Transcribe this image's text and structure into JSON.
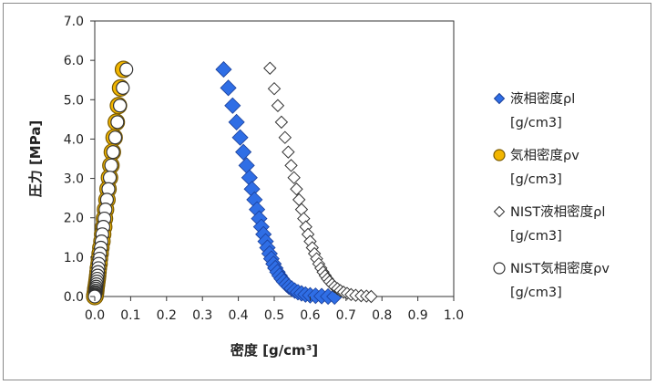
{
  "chart_data": {
    "type": "scatter",
    "xlabel": "密度 [g/cm³]",
    "ylabel": "圧力 [MPa]",
    "xlim": [
      0.0,
      1.0
    ],
    "ylim": [
      0.0,
      7.0
    ],
    "x_ticks": [
      "0.0",
      "0.1",
      "0.2",
      "0.3",
      "0.4",
      "0.5",
      "0.6",
      "0.7",
      "0.8",
      "0.9",
      "1.0"
    ],
    "y_ticks": [
      "0.0",
      "1.0",
      "2.0",
      "3.0",
      "4.0",
      "5.0",
      "6.0",
      "7.0"
    ],
    "grid": false,
    "legend_position": "right",
    "series": [
      {
        "name": "液相密度ρl [g/cm3]",
        "marker": "diamond-filled",
        "color": "#2f6ee5",
        "stroke": "#1a3f99",
        "points": [
          [
            0.359,
            5.77
          ],
          [
            0.372,
            5.3
          ],
          [
            0.384,
            4.85
          ],
          [
            0.395,
            4.43
          ],
          [
            0.405,
            4.04
          ],
          [
            0.414,
            3.67
          ],
          [
            0.423,
            3.33
          ],
          [
            0.431,
            3.02
          ],
          [
            0.438,
            2.73
          ],
          [
            0.445,
            2.46
          ],
          [
            0.452,
            2.21
          ],
          [
            0.458,
            1.98
          ],
          [
            0.464,
            1.77
          ],
          [
            0.47,
            1.58
          ],
          [
            0.476,
            1.4
          ],
          [
            0.481,
            1.24
          ],
          [
            0.487,
            1.09
          ],
          [
            0.492,
            0.96
          ],
          [
            0.498,
            0.83
          ],
          [
            0.503,
            0.72
          ],
          [
            0.509,
            0.62
          ],
          [
            0.515,
            0.53
          ],
          [
            0.521,
            0.45
          ],
          [
            0.527,
            0.38
          ],
          [
            0.534,
            0.31
          ],
          [
            0.541,
            0.25
          ],
          [
            0.549,
            0.2
          ],
          [
            0.557,
            0.15
          ],
          [
            0.566,
            0.11
          ],
          [
            0.576,
            0.08
          ],
          [
            0.587,
            0.05
          ],
          [
            0.6,
            0.03
          ],
          [
            0.615,
            0.02
          ],
          [
            0.632,
            0.01
          ],
          [
            0.65,
            0.0
          ],
          [
            0.668,
            0.0
          ]
        ]
      },
      {
        "name": "気相密度ρv [g/cm3]",
        "marker": "circle-filled",
        "color": "#f2b600",
        "stroke": "#7a5a00",
        "points": [
          [
            0.08,
            5.77
          ],
          [
            0.072,
            5.3
          ],
          [
            0.066,
            4.85
          ],
          [
            0.06,
            4.43
          ],
          [
            0.054,
            4.04
          ],
          [
            0.049,
            3.67
          ],
          [
            0.045,
            3.33
          ],
          [
            0.041,
            3.02
          ],
          [
            0.037,
            2.73
          ],
          [
            0.034,
            2.46
          ],
          [
            0.03,
            2.21
          ],
          [
            0.027,
            1.98
          ],
          [
            0.025,
            1.77
          ],
          [
            0.022,
            1.58
          ],
          [
            0.02,
            1.4
          ],
          [
            0.017,
            1.24
          ],
          [
            0.015,
            1.09
          ],
          [
            0.013,
            0.96
          ],
          [
            0.012,
            0.83
          ],
          [
            0.01,
            0.72
          ],
          [
            0.009,
            0.62
          ],
          [
            0.008,
            0.53
          ],
          [
            0.007,
            0.45
          ],
          [
            0.006,
            0.38
          ],
          [
            0.005,
            0.31
          ],
          [
            0.004,
            0.25
          ],
          [
            0.003,
            0.2
          ],
          [
            0.003,
            0.15
          ],
          [
            0.002,
            0.11
          ],
          [
            0.002,
            0.08
          ],
          [
            0.001,
            0.05
          ],
          [
            0.001,
            0.03
          ],
          [
            0.001,
            0.02
          ],
          [
            0.0,
            0.01
          ],
          [
            0.0,
            0.0
          ]
        ]
      },
      {
        "name": "NIST液相密度ρl [g/cm3]",
        "marker": "diamond-open",
        "color": "#ffffff",
        "stroke": "#333333",
        "points": [
          [
            0.488,
            5.8
          ],
          [
            0.5,
            5.28
          ],
          [
            0.51,
            4.85
          ],
          [
            0.52,
            4.43
          ],
          [
            0.53,
            4.04
          ],
          [
            0.539,
            3.67
          ],
          [
            0.547,
            3.33
          ],
          [
            0.555,
            3.02
          ],
          [
            0.562,
            2.73
          ],
          [
            0.569,
            2.46
          ],
          [
            0.576,
            2.21
          ],
          [
            0.582,
            1.98
          ],
          [
            0.588,
            1.77
          ],
          [
            0.594,
            1.58
          ],
          [
            0.6,
            1.4
          ],
          [
            0.606,
            1.24
          ],
          [
            0.612,
            1.09
          ],
          [
            0.618,
            0.96
          ],
          [
            0.624,
            0.83
          ],
          [
            0.63,
            0.72
          ],
          [
            0.636,
            0.62
          ],
          [
            0.642,
            0.53
          ],
          [
            0.648,
            0.45
          ],
          [
            0.654,
            0.38
          ],
          [
            0.661,
            0.31
          ],
          [
            0.668,
            0.25
          ],
          [
            0.676,
            0.2
          ],
          [
            0.684,
            0.15
          ],
          [
            0.693,
            0.11
          ],
          [
            0.703,
            0.08
          ],
          [
            0.714,
            0.05
          ],
          [
            0.727,
            0.03
          ],
          [
            0.742,
            0.02
          ],
          [
            0.757,
            0.01
          ],
          [
            0.77,
            0.0
          ]
        ]
      },
      {
        "name": "NIST気相密度ρv [g/cm3]",
        "marker": "circle-open",
        "color": "#ffffff",
        "stroke": "#333333",
        "points": [
          [
            0.088,
            5.77
          ],
          [
            0.078,
            5.3
          ],
          [
            0.07,
            4.85
          ],
          [
            0.063,
            4.43
          ],
          [
            0.057,
            4.04
          ],
          [
            0.051,
            3.67
          ],
          [
            0.046,
            3.33
          ],
          [
            0.042,
            3.02
          ],
          [
            0.038,
            2.73
          ],
          [
            0.034,
            2.46
          ],
          [
            0.03,
            2.21
          ],
          [
            0.027,
            1.98
          ],
          [
            0.024,
            1.77
          ],
          [
            0.021,
            1.58
          ],
          [
            0.019,
            1.4
          ],
          [
            0.017,
            1.24
          ],
          [
            0.015,
            1.09
          ],
          [
            0.013,
            0.96
          ],
          [
            0.011,
            0.83
          ],
          [
            0.01,
            0.72
          ],
          [
            0.009,
            0.62
          ],
          [
            0.008,
            0.53
          ],
          [
            0.007,
            0.45
          ],
          [
            0.006,
            0.38
          ],
          [
            0.005,
            0.31
          ],
          [
            0.004,
            0.25
          ],
          [
            0.003,
            0.2
          ],
          [
            0.003,
            0.15
          ],
          [
            0.002,
            0.11
          ],
          [
            0.002,
            0.08
          ],
          [
            0.001,
            0.05
          ],
          [
            0.001,
            0.03
          ],
          [
            0.001,
            0.02
          ],
          [
            0.0,
            0.01
          ],
          [
            0.0,
            0.0
          ]
        ]
      }
    ],
    "legend": [
      {
        "line1": "液相密度ρl",
        "line2": "[g/cm3]"
      },
      {
        "line1": "気相密度ρv",
        "line2": "[g/cm3]"
      },
      {
        "line1": "NIST液相密度ρl",
        "line2": "[g/cm3]"
      },
      {
        "line1": "NIST気相密度ρv",
        "line2": "[g/cm3]"
      }
    ]
  }
}
